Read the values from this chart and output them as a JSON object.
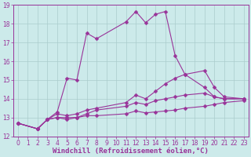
{
  "background_color": "#cceaea",
  "grid_color": "#aacccc",
  "line_color": "#993399",
  "marker": "D",
  "marker_size": 2.5,
  "xlabel": "Windchill (Refroidissement éolien,°C)",
  "xlabel_fontsize": 6.5,
  "tick_fontsize": 5.5,
  "xlim": [
    -0.5,
    23.5
  ],
  "ylim": [
    12,
    19
  ],
  "xticks": [
    0,
    1,
    2,
    3,
    4,
    5,
    6,
    7,
    8,
    9,
    10,
    11,
    12,
    13,
    14,
    15,
    16,
    17,
    18,
    19,
    20,
    21,
    22,
    23
  ],
  "yticks": [
    12,
    13,
    14,
    15,
    16,
    17,
    18,
    19
  ],
  "series": [
    {
      "x": [
        0,
        2,
        3,
        4,
        5,
        6,
        7,
        8,
        11,
        12,
        13,
        14,
        15,
        16,
        17,
        19,
        20,
        21,
        23
      ],
      "y": [
        12.7,
        12.4,
        12.9,
        13.3,
        15.1,
        15.0,
        17.5,
        17.2,
        18.1,
        18.65,
        18.05,
        18.5,
        18.65,
        16.3,
        15.3,
        14.6,
        14.1,
        14.0,
        14.0
      ]
    },
    {
      "x": [
        0,
        2,
        3,
        4,
        5,
        6,
        7,
        8,
        11,
        12,
        13,
        14,
        15,
        16,
        17,
        19,
        20,
        21,
        23
      ],
      "y": [
        12.7,
        12.4,
        12.9,
        13.2,
        13.1,
        13.2,
        13.4,
        13.5,
        13.8,
        14.2,
        14.0,
        14.4,
        14.8,
        15.1,
        15.3,
        15.5,
        14.6,
        14.1,
        14.0
      ]
    },
    {
      "x": [
        0,
        2,
        3,
        4,
        5,
        6,
        7,
        8,
        11,
        12,
        13,
        14,
        15,
        16,
        17,
        19,
        20,
        21,
        23
      ],
      "y": [
        12.7,
        12.4,
        12.9,
        13.0,
        13.0,
        13.0,
        13.2,
        13.4,
        13.6,
        13.8,
        13.7,
        13.9,
        14.0,
        14.1,
        14.2,
        14.3,
        14.1,
        14.0,
        14.0
      ]
    },
    {
      "x": [
        0,
        2,
        3,
        4,
        5,
        6,
        7,
        8,
        11,
        12,
        13,
        14,
        15,
        16,
        17,
        19,
        20,
        21,
        23
      ],
      "y": [
        12.7,
        12.4,
        12.9,
        13.0,
        12.9,
        13.0,
        13.1,
        13.1,
        13.2,
        13.35,
        13.25,
        13.3,
        13.35,
        13.4,
        13.5,
        13.6,
        13.7,
        13.8,
        13.9
      ]
    }
  ]
}
